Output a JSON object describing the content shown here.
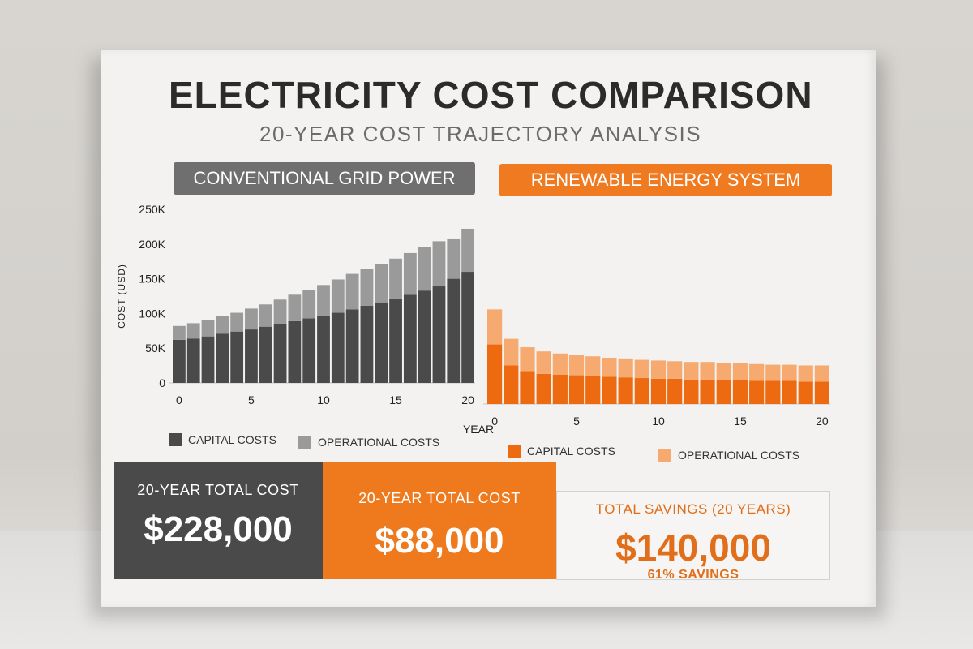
{
  "title": "ELECTRICITY COST COMPARISON",
  "subtitle": "20-YEAR COST TRAJECTORY ANALYSIS",
  "colors": {
    "grid_capital": "#4a4a4a",
    "grid_operational": "#9a9a9a",
    "renew_capital": "#ee6a10",
    "renew_operational": "#f6aa70"
  },
  "chart_data": [
    {
      "type": "bar",
      "stacked": true,
      "title": "CONVENTIONAL GRID POWER",
      "xlabel": "YEAR",
      "ylabel": "COST (USD)",
      "y_ticks": [
        "250K",
        "200K",
        "150K",
        "100K",
        "50K",
        "0"
      ],
      "x_ticks": [
        "0",
        "5",
        "10",
        "15",
        "20"
      ],
      "ylim": [
        0,
        250000
      ],
      "xlim": [
        0,
        20
      ],
      "legend_position": "bottom",
      "categories": [
        0,
        1,
        2,
        3,
        4,
        5,
        6,
        7,
        8,
        9,
        10,
        11,
        12,
        13,
        14,
        15,
        16,
        17,
        18,
        19,
        20
      ],
      "series": [
        {
          "name": "CAPITAL COSTS",
          "values": [
            62000,
            64000,
            67000,
            71000,
            74000,
            77000,
            81000,
            85000,
            89000,
            93000,
            97000,
            101000,
            106000,
            111000,
            116000,
            121000,
            127000,
            133000,
            139000,
            150000,
            160000
          ]
        },
        {
          "name": "OPERATIONAL COSTS",
          "values": [
            20000,
            22000,
            24000,
            25000,
            27000,
            30000,
            32000,
            35000,
            38000,
            41000,
            44000,
            48000,
            51000,
            53000,
            55000,
            58000,
            60000,
            63000,
            65000,
            58000,
            62000
          ]
        }
      ]
    },
    {
      "type": "bar",
      "stacked": true,
      "title": "RENEWABLE ENERGY SYSTEM",
      "x_ticks": [
        "0",
        "5",
        "10",
        "15",
        "20"
      ],
      "ylim": [
        0,
        250000
      ],
      "xlim": [
        0,
        20
      ],
      "legend_position": "bottom",
      "categories": [
        0,
        1,
        2,
        3,
        4,
        5,
        6,
        7,
        8,
        9,
        10,
        11,
        12,
        13,
        14,
        15,
        16,
        17,
        18,
        19,
        20
      ],
      "series": [
        {
          "name": "CAPITAL COSTS",
          "values": [
            85000,
            55000,
            47000,
            43000,
            42000,
            41000,
            40000,
            39000,
            38000,
            37000,
            36000,
            36000,
            35000,
            35000,
            34000,
            34000,
            33000,
            33000,
            33000,
            32000,
            32000
          ]
        },
        {
          "name": "OPERATIONAL COSTS",
          "values": [
            50000,
            38000,
            34000,
            32000,
            30000,
            29000,
            28000,
            27000,
            27000,
            26000,
            26000,
            25000,
            25000,
            25000,
            24000,
            24000,
            24000,
            23000,
            23000,
            23000,
            23000
          ]
        }
      ]
    }
  ],
  "totals": {
    "grid": {
      "label": "20-YEAR TOTAL COST",
      "value": "$228,000"
    },
    "renewable": {
      "label": "20-YEAR TOTAL COST",
      "value": "$88,000"
    },
    "savings": {
      "label": "TOTAL SAVINGS (20 YEARS)",
      "value": "$140,000",
      "percent": "61% SAVINGS"
    }
  }
}
